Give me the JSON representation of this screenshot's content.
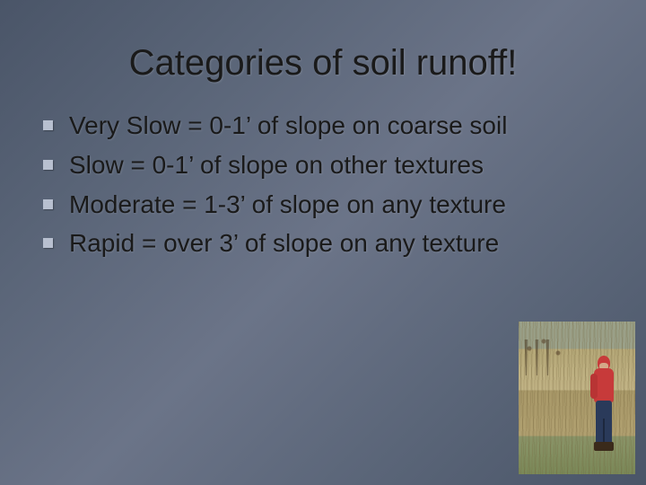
{
  "slide": {
    "title": "Categories of soil runoff!",
    "title_fontsize": 40,
    "title_color": "#1a1a1a",
    "background_gradient": [
      "#4a5568",
      "#5a6578",
      "#6b7488"
    ],
    "bullets": [
      {
        "text": "Very Slow = 0-1’ of slope on coarse soil"
      },
      {
        "text": "Slow = 0-1’ of slope on other textures"
      },
      {
        "text": "Moderate = 1-3’ of slope on any texture"
      },
      {
        "text": "Rapid = over 3’ of slope on any texture"
      }
    ],
    "bullet_fontsize": 28,
    "bullet_text_color": "#1a1a1a",
    "bullet_marker_color": "#b8c0d0",
    "bullet_marker_size": 11,
    "image": {
      "description": "person-in-red-jacket-in-tall-grass-field",
      "position": "bottom-right",
      "width": 130,
      "height": 170,
      "jacket_color": "#c73a3a",
      "pants_color": "#2a3a5a",
      "grass_colors": [
        "#b5a878",
        "#c2b486",
        "#a89868"
      ],
      "sky_color": "#9aa088"
    }
  }
}
